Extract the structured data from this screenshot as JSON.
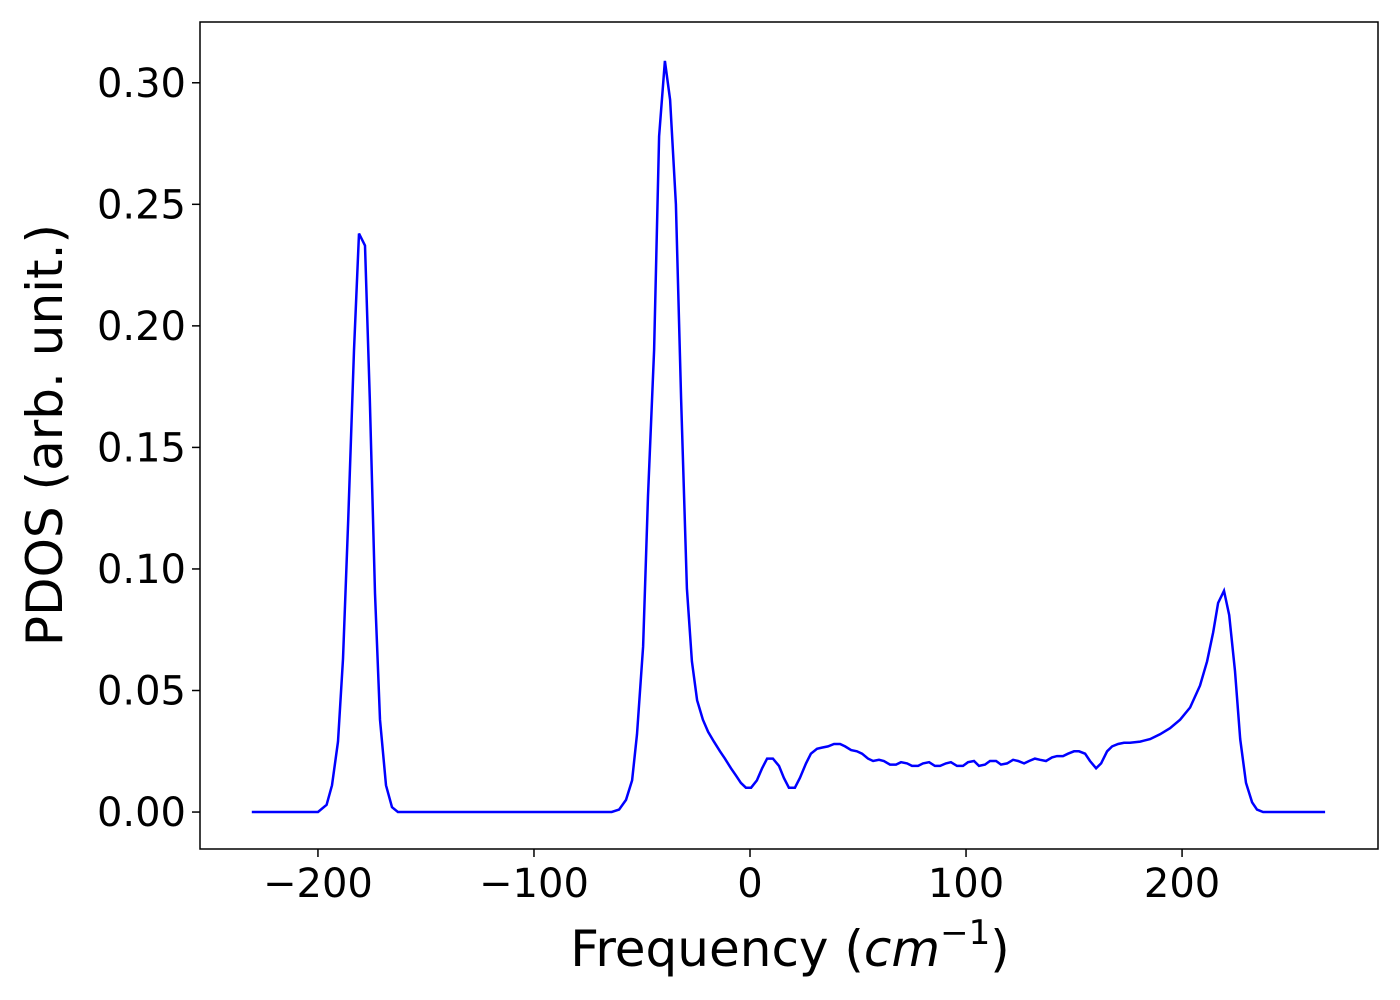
{
  "chart_data": {
    "type": "line",
    "x_label": [
      "Frequency (",
      "cm",
      "−1",
      ")"
    ],
    "y_label": "PDOS (arb. unit.)",
    "xlim": [
      -254.6,
      290.7
    ],
    "ylim": [
      -0.0152,
      0.325
    ],
    "xticks": [
      {
        "value": -200,
        "label": "−200"
      },
      {
        "value": -100,
        "label": "−100"
      },
      0,
      100,
      200
    ],
    "yticks": [
      {
        "value": 0,
        "label": "0.00"
      },
      0.05,
      {
        "value": 0.1,
        "label": "0.10"
      },
      0.15,
      {
        "value": 0.2,
        "label": "0.20"
      },
      0.25,
      {
        "value": 0.3,
        "label": "0.30"
      }
    ],
    "series": [
      {
        "color": "#0000ff",
        "x": [
          -230.6,
          -200,
          -196,
          -193.5,
          -190.7,
          -188.4,
          -186,
          -183.3,
          -181,
          -178.2,
          -176,
          -173.6,
          -171.3,
          -168.5,
          -165.7,
          -163,
          -64,
          -60.6,
          -57.4,
          -54.6,
          -52.3,
          -49.5,
          -47.2,
          -44.4,
          -42.1,
          -39.4,
          -37,
          -34.3,
          -31.9,
          -29.2,
          -26.9,
          -24.5,
          -21.8,
          -19.4,
          -16.7,
          -13.9,
          -11.6,
          -8.8,
          -6.5,
          -4.2,
          -1.9,
          0.5,
          3.2,
          5.6,
          7.9,
          10.6,
          13.4,
          15.7,
          18,
          20.8,
          23.1,
          25.9,
          28.2,
          31,
          33.3,
          36.1,
          38.9,
          41.7,
          44,
          46.8,
          49.5,
          51.9,
          54.6,
          57,
          59.7,
          62,
          64.8,
          67.6,
          69.9,
          72.7,
          75,
          77.8,
          80.1,
          82.9,
          85.6,
          88,
          90.7,
          93,
          95.8,
          98.6,
          100.9,
          103.7,
          106,
          108.8,
          111.1,
          113.9,
          116.2,
          119,
          121.8,
          124.1,
          126.9,
          129.2,
          131.9,
          134.3,
          137,
          139.8,
          142.1,
          144.9,
          147.2,
          150,
          152.3,
          155.1,
          157.4,
          160.2,
          162.5,
          165.3,
          167.6,
          170.4,
          173.1,
          175.9,
          180.6,
          185.2,
          189.8,
          194.4,
          199.1,
          203.7,
          208.3,
          211.6,
          214.4,
          216.7,
          219.4,
          221.8,
          224.5,
          226.9,
          229.6,
          232.4,
          234.7,
          237.5,
          266.2
        ],
        "values": [
          0,
          0,
          0.003,
          0.011,
          0.029,
          0.063,
          0.12,
          0.19,
          0.238,
          0.233,
          0.17,
          0.09,
          0.038,
          0.011,
          0.002,
          0,
          0,
          0.001,
          0.005,
          0.013,
          0.032,
          0.068,
          0.13,
          0.19,
          0.278,
          0.309,
          0.293,
          0.25,
          0.17,
          0.092,
          0.062,
          0.046,
          0.038,
          0.033,
          0.029,
          0.025,
          0.022,
          0.018,
          0.015,
          0.012,
          0.01,
          0.01,
          0.013,
          0.018,
          0.022,
          0.022,
          0.019,
          0.014,
          0.01,
          0.01,
          0.014,
          0.02,
          0.024,
          0.026,
          0.0265,
          0.027,
          0.028,
          0.028,
          0.027,
          0.0255,
          0.025,
          0.024,
          0.022,
          0.021,
          0.0215,
          0.021,
          0.0195,
          0.0195,
          0.0205,
          0.02,
          0.019,
          0.019,
          0.02,
          0.0205,
          0.019,
          0.019,
          0.02,
          0.0205,
          0.019,
          0.019,
          0.0205,
          0.021,
          0.019,
          0.0195,
          0.021,
          0.021,
          0.0195,
          0.02,
          0.0215,
          0.021,
          0.02,
          0.021,
          0.022,
          0.0215,
          0.021,
          0.0225,
          0.023,
          0.023,
          0.024,
          0.025,
          0.025,
          0.024,
          0.021,
          0.018,
          0.02,
          0.025,
          0.027,
          0.028,
          0.0285,
          0.0285,
          0.029,
          0.03,
          0.032,
          0.0345,
          0.038,
          0.043,
          0.052,
          0.062,
          0.074,
          0.086,
          0.091,
          0.081,
          0.058,
          0.03,
          0.012,
          0.004,
          0.001,
          0,
          0
        ]
      }
    ]
  }
}
